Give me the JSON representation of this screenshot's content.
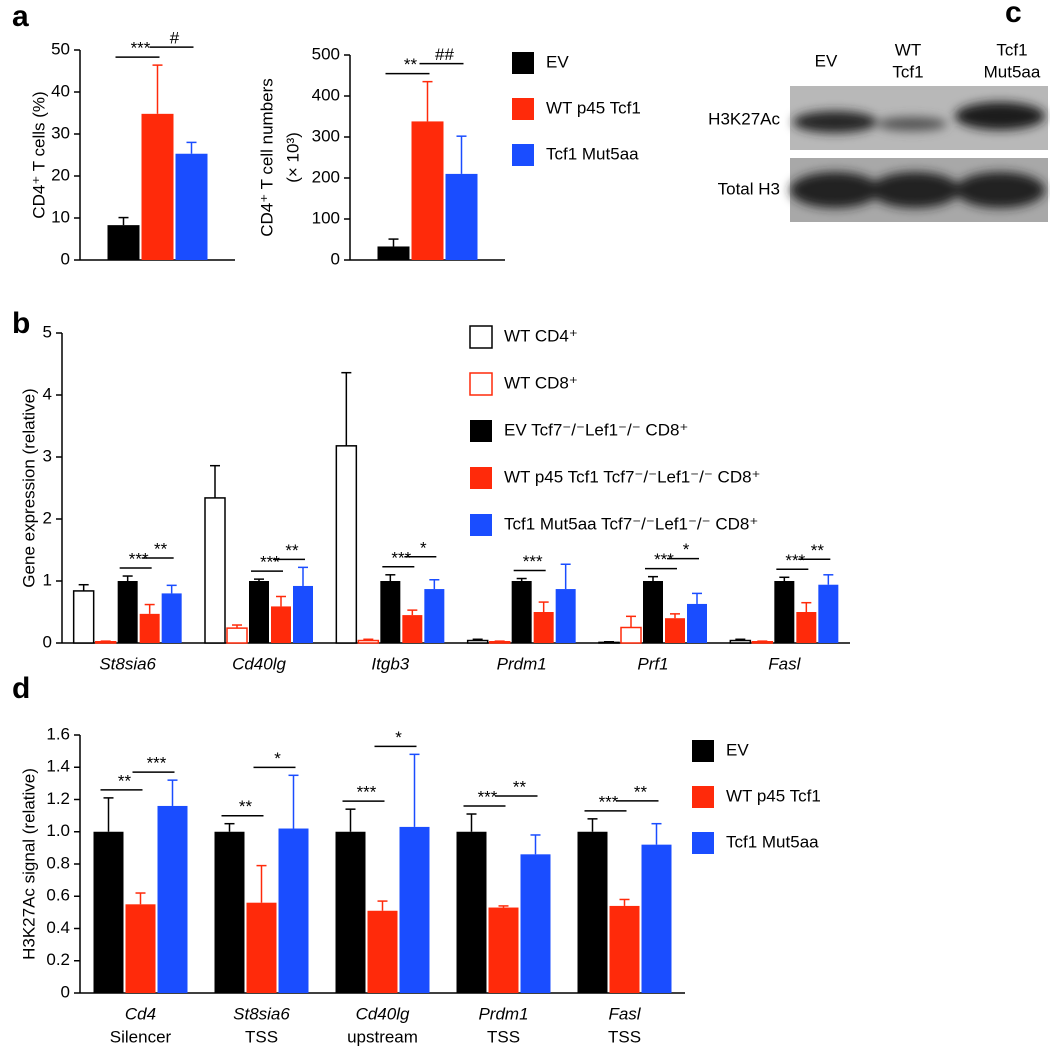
{
  "chart_data": [
    {
      "type": "bar",
      "panel": "a",
      "ylabel": "CD4⁺ T cells (%)",
      "ylim": [
        0,
        50
      ],
      "yticks": [
        0,
        10,
        20,
        30,
        40,
        50
      ],
      "series": [
        {
          "color": "#000000",
          "values": [
            8.3
          ],
          "errors": [
            1.8
          ]
        },
        {
          "color": "#ff2a0a",
          "values": [
            34.8
          ],
          "errors": [
            11.6
          ]
        },
        {
          "color": "#1a4dff",
          "values": [
            25.3
          ],
          "errors": [
            2.7
          ]
        }
      ],
      "significance": [
        [
          "***",
          "#"
        ]
      ]
    },
    {
      "type": "bar",
      "ylabel": [
        "CD4⁺ T cell numbers",
        "(× 10³)"
      ],
      "ylim": [
        0,
        500
      ],
      "yticks": [
        0,
        100,
        200,
        300,
        400,
        500
      ],
      "series": [
        {
          "name": "EV",
          "color": "#000000",
          "values": [
            33
          ],
          "errors": [
            18
          ]
        },
        {
          "name": "WT p45 Tcf1",
          "color": "#ff2a0a",
          "values": [
            338
          ],
          "errors": [
            97
          ]
        },
        {
          "name": "Tcf1 Mut5aa",
          "color": "#1a4dff",
          "values": [
            210
          ],
          "errors": [
            92
          ]
        }
      ],
      "significance": [
        [
          "**",
          "##"
        ]
      ]
    },
    {
      "type": "bar",
      "panel": "b",
      "ylabel": "Gene expression (relative)",
      "categories": [
        "St8sia6",
        "Cd40lg",
        "Itgb3",
        "Prdm1",
        "Prf1",
        "Fasl"
      ],
      "ylim": [
        0,
        5
      ],
      "yticks": [
        0,
        1,
        2,
        3,
        4,
        5
      ],
      "series": [
        {
          "name": "WT CD4⁺",
          "color": "#ffffff",
          "edgecolor": "#000000",
          "values": [
            0.84,
            2.34,
            3.18,
            0.04,
            0.01,
            0.04
          ],
          "errors": [
            0.1,
            0.52,
            1.18,
            0.02,
            0.01,
            0.02
          ]
        },
        {
          "name": "WT CD8⁺",
          "color": "#ffffff",
          "edgecolor": "#ff2a0a",
          "values": [
            0.02,
            0.24,
            0.04,
            0.02,
            0.25,
            0.02
          ],
          "errors": [
            0.01,
            0.05,
            0.02,
            0.01,
            0.18,
            0.01
          ]
        },
        {
          "name": "EV Tcf7⁻/⁻Lef1⁻/⁻ CD8⁺",
          "color": "#000000",
          "values": [
            1.0,
            1.0,
            1.0,
            1.0,
            1.0,
            1.0
          ],
          "errors": [
            0.08,
            0.03,
            0.1,
            0.04,
            0.07,
            0.06
          ]
        },
        {
          "name": "WT p45 Tcf1 Tcf7⁻/⁻Lef1⁻/⁻ CD8⁺",
          "color": "#ff2a0a",
          "values": [
            0.47,
            0.59,
            0.45,
            0.5,
            0.4,
            0.5
          ],
          "errors": [
            0.15,
            0.16,
            0.08,
            0.16,
            0.07,
            0.15
          ]
        },
        {
          "name": "Tcf1 Mut5aa Tcf7⁻/⁻Lef1⁻/⁻ CD8⁺",
          "color": "#1a4dff",
          "values": [
            0.8,
            0.92,
            0.87,
            0.87,
            0.63,
            0.94
          ],
          "errors": [
            0.13,
            0.3,
            0.15,
            0.4,
            0.17,
            0.16
          ]
        }
      ],
      "significance": [
        [
          "***",
          "**"
        ],
        [
          "***",
          "**"
        ],
        [
          "***",
          "*"
        ],
        [
          "***",
          null
        ],
        [
          "***",
          "*"
        ],
        [
          "***",
          "**"
        ]
      ]
    },
    {
      "type": "bar",
      "panel": "d",
      "ylabel": "H3K27Ac signal (relative)",
      "categories": [
        [
          "Cd4",
          "Silencer"
        ],
        [
          "St8sia6",
          "TSS"
        ],
        [
          "Cd40lg",
          "upstream"
        ],
        [
          "Prdm1",
          "TSS"
        ],
        [
          "Fasl",
          "TSS"
        ]
      ],
      "ylim": [
        0,
        1.6
      ],
      "yticks": [
        0,
        0.2,
        0.4,
        0.6,
        0.8,
        {
          "value": 1,
          "label": "1.0"
        },
        1.2,
        1.4,
        1.6
      ],
      "series": [
        {
          "name": "EV",
          "color": "#000000",
          "values": [
            1.0,
            1.0,
            1.0,
            1.0,
            1.0
          ],
          "errors": [
            0.21,
            0.05,
            0.14,
            0.11,
            0.08
          ]
        },
        {
          "name": "WT p45 Tcf1",
          "color": "#ff2a0a",
          "values": [
            0.55,
            0.56,
            0.51,
            0.53,
            0.54
          ],
          "errors": [
            0.07,
            0.23,
            0.06,
            0.01,
            0.04
          ]
        },
        {
          "name": "Tcf1 Mut5aa",
          "color": "#1a4dff",
          "values": [
            1.16,
            1.02,
            1.03,
            0.86,
            0.92
          ],
          "errors": [
            0.16,
            0.33,
            0.45,
            0.12,
            0.13
          ]
        }
      ],
      "significance": [
        [
          "**",
          "***"
        ],
        [
          "**",
          "*"
        ],
        [
          "***",
          "*"
        ],
        [
          "***",
          "**"
        ],
        [
          "***",
          "**"
        ]
      ]
    }
  ],
  "blot": {
    "panel": "c",
    "lanes": [
      [
        "EV"
      ],
      [
        "WT",
        "Tcf1"
      ],
      [
        "Tcf1",
        "Mut5aa"
      ]
    ],
    "rows": [
      "H3K27Ac",
      "Total H3"
    ]
  }
}
